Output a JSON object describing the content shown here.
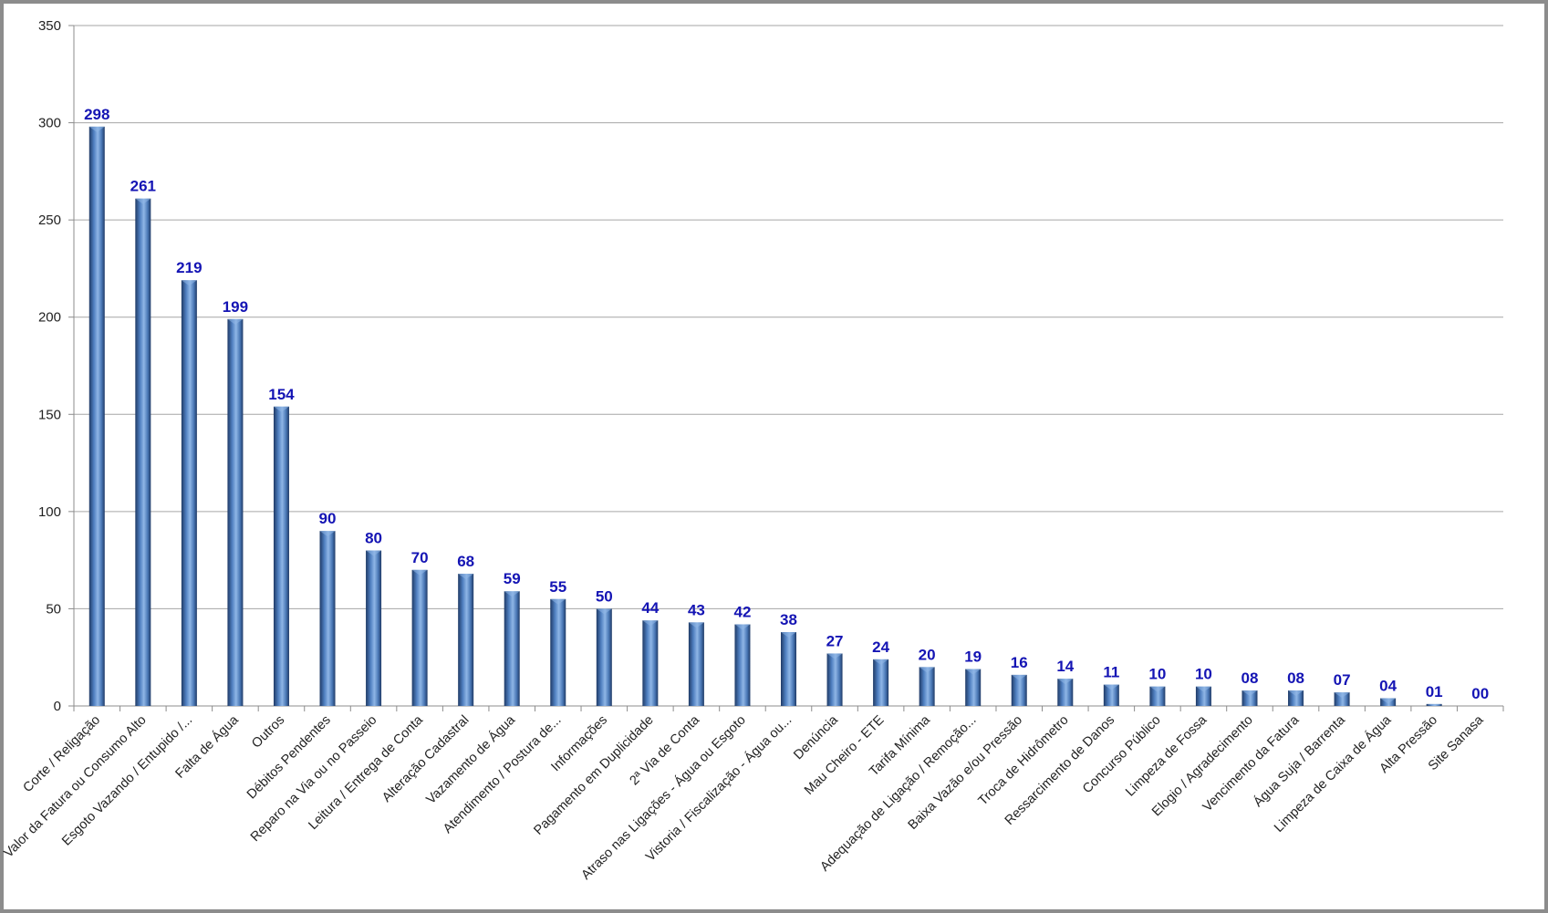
{
  "chart_data": {
    "type": "bar",
    "title": "",
    "xlabel": "",
    "ylabel": "",
    "ylim": [
      0,
      350
    ],
    "yticks": [
      0,
      50,
      100,
      150,
      200,
      250,
      300,
      350
    ],
    "grid": true,
    "legend": "none",
    "categories": [
      "Corte / Religação",
      "Valor da Fatura ou Consumo Alto",
      "Esgoto Vazando / Entupido /...",
      "Falta de Água",
      "Outros",
      "Débitos Pendentes",
      "Reparo na Via ou no Passeio",
      "Leitura / Entrega de Conta",
      "Alteração Cadastral",
      "Vazamento de Água",
      "Atendimento / Postura de...",
      "Informações",
      "Pagamento em Duplicidade",
      "2ª Via de Conta",
      "Atraso nas Ligações - Água ou Esgoto",
      "Vistoria / Fiscalização - Água ou...",
      "Denúncia",
      "Mau Cheiro - ETE",
      "Tarifa Mínima",
      "Adequação de Ligação / Remoção...",
      "Baixa Vazão e/ou Pressão",
      "Troca de Hidrômetro",
      "Ressarcimento de Danos",
      "Concurso Público",
      "Limpeza de Fossa",
      "Elogio / Agradecimento",
      "Vencimento da Fatura",
      "Água Suja / Barrenta",
      "Limpeza de Caixa de Água",
      "Alta Pressão",
      "Site Sanasa"
    ],
    "values": [
      298,
      261,
      219,
      199,
      154,
      90,
      80,
      70,
      68,
      59,
      55,
      50,
      44,
      43,
      42,
      38,
      27,
      24,
      20,
      19,
      16,
      14,
      11,
      10,
      10,
      8,
      8,
      7,
      4,
      1,
      0
    ],
    "data_labels": [
      "298",
      "261",
      "219",
      "199",
      "154",
      "90",
      "80",
      "70",
      "68",
      "59",
      "55",
      "50",
      "44",
      "43",
      "42",
      "38",
      "27",
      "24",
      "20",
      "19",
      "16",
      "14",
      "11",
      "10",
      "10",
      "08",
      "08",
      "07",
      "04",
      "01",
      "00"
    ],
    "colors": {
      "bar_dark": "#1f3a66",
      "bar_mid": "#4f7fc0",
      "bar_light": "#8fb6e6",
      "data_label": "#1414b4",
      "grid": "#a6a6a6",
      "axis": "#8c8c8c"
    }
  }
}
